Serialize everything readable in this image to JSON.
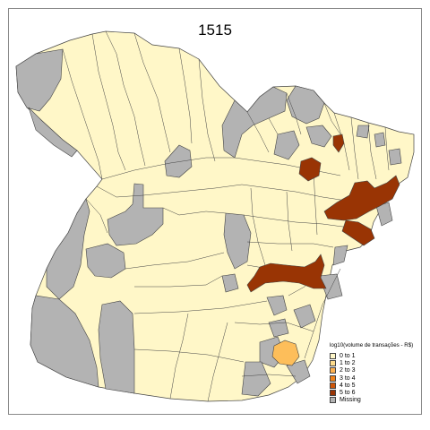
{
  "title": "1515",
  "legend": {
    "title": "log10(volume de transações - R$)",
    "items": [
      {
        "label": "0 to 1",
        "color": "#fff7c8"
      },
      {
        "label": "1 to 2",
        "color": "#fedc8c"
      },
      {
        "label": "2 to 3",
        "color": "#fdb150"
      },
      {
        "label": "3 to 4",
        "color": "#f0821a"
      },
      {
        "label": "4 to 5",
        "color": "#cc5509"
      },
      {
        "label": "5 to 6",
        "color": "#993404"
      },
      {
        "label": "Missing",
        "color": "#b3b3b3"
      }
    ]
  },
  "colors": {
    "border": "#444444",
    "frame": "#8a8a8a"
  }
}
